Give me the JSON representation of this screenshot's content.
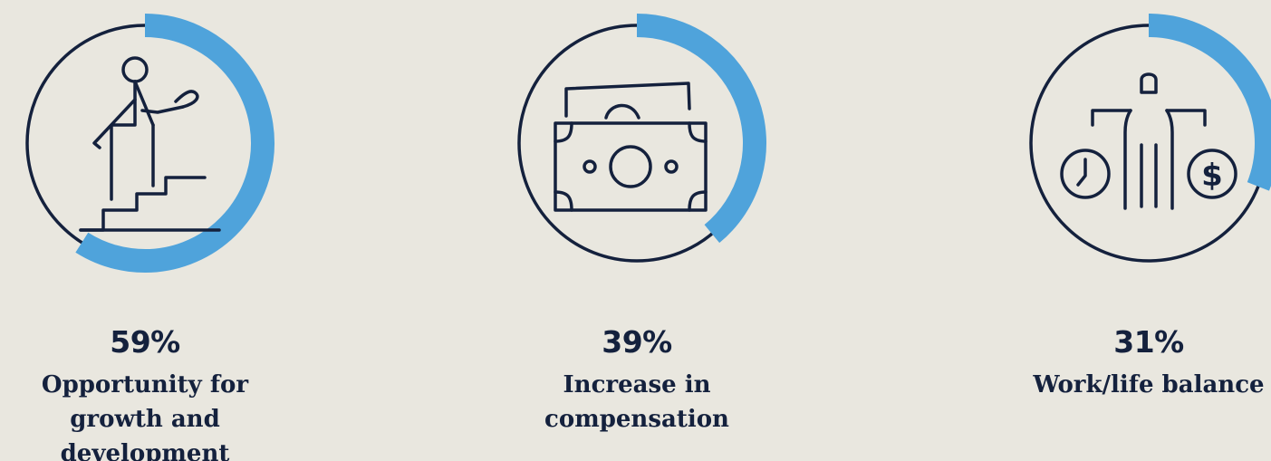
{
  "chart_data": [
    {
      "type": "pie",
      "values": [
        59
      ],
      "value_label": "59%",
      "label": "Opportunity for growth and development",
      "icon": "person-climbing-stairs-icon",
      "color": "#4FA3DB"
    },
    {
      "type": "pie",
      "values": [
        39
      ],
      "value_label": "39%",
      "label": "Increase in compensation",
      "icon": "banknote-icon",
      "color": "#4FA3DB"
    },
    {
      "type": "pie",
      "values": [
        31
      ],
      "value_label": "31%",
      "label": "Work/life balance",
      "icon": "balance-scale-person-icon",
      "color": "#4FA3DB"
    }
  ],
  "colors": {
    "background": "#E9E7DF",
    "ink": "#14213D",
    "accent": "#4FA3DB"
  }
}
